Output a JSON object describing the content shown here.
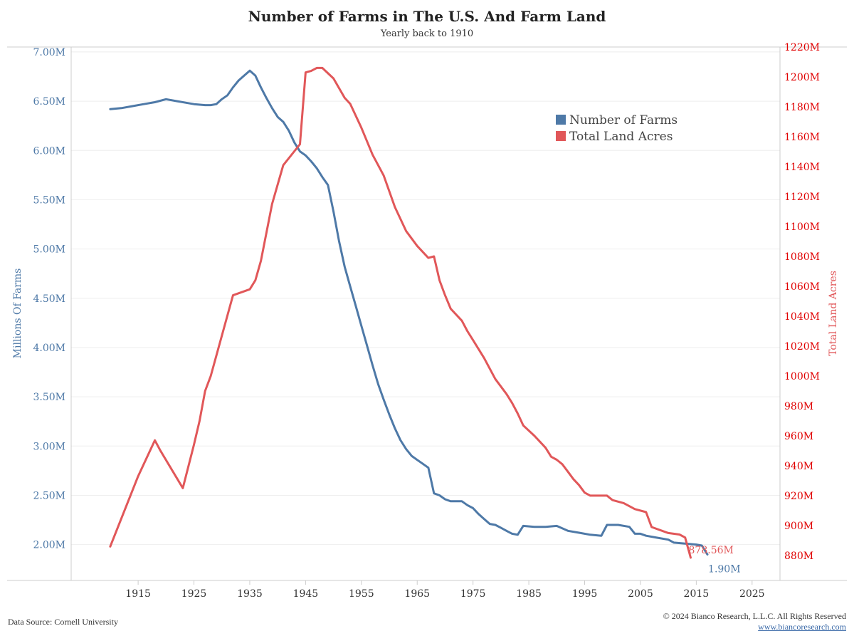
{
  "header": {
    "title": "Number of Farms in The U.S. And Farm Land",
    "subtitle": "Yearly back to 1910"
  },
  "footer": {
    "source": "Data Source: Cornell University",
    "copyright": "© 2024 Bianco Research, L.L.C. All Rights Reserved",
    "website": "www.biancoresearch.com"
  },
  "colors": {
    "farms": "#4e79a7",
    "acres": "#e15759",
    "right_axis_ticks": "#e00000",
    "grid": "#eeeeee",
    "axis": "#cccccc"
  },
  "chart_data": {
    "type": "line",
    "title": "Number of Farms in The U.S. And Farm Land",
    "subtitle": "Yearly back to 1910",
    "legend_position": "top-right",
    "grid": true,
    "x_axis": {
      "range": [
        1903,
        2030
      ],
      "ticks": [
        1915,
        1925,
        1935,
        1945,
        1955,
        1965,
        1975,
        1985,
        1995,
        2005,
        2015,
        2025
      ],
      "tick_labels": [
        "1915",
        "1925",
        "1935",
        "1945",
        "1955",
        "1965",
        "1975",
        "1985",
        "1995",
        "2005",
        "2015",
        "2025"
      ]
    },
    "y_left": {
      "label": "Millions Of Farms",
      "range": [
        1.636,
        7.05
      ],
      "ticks": [
        2.0,
        2.5,
        3.0,
        3.5,
        4.0,
        4.5,
        5.0,
        5.5,
        6.0,
        6.5,
        7.0
      ],
      "tick_labels": [
        "2.00M",
        "2.50M",
        "3.00M",
        "3.50M",
        "4.00M",
        "4.50M",
        "5.00M",
        "5.50M",
        "6.00M",
        "6.50M",
        "7.00M"
      ]
    },
    "y_right": {
      "label": "Total Land Acres",
      "range": [
        863.3,
        1220
      ],
      "ticks": [
        880,
        900,
        920,
        940,
        960,
        980,
        1000,
        1020,
        1040,
        1060,
        1080,
        1100,
        1120,
        1140,
        1160,
        1180,
        1200,
        1220
      ],
      "tick_labels": [
        "880M",
        "900M",
        "920M",
        "940M",
        "960M",
        "980M",
        "1000M",
        "1020M",
        "1040M",
        "1060M",
        "1080M",
        "1100M",
        "1120M",
        "1140M",
        "1160M",
        "1180M",
        "1200M",
        "1220M"
      ]
    },
    "series": [
      {
        "name": "Number of Farms",
        "axis": "left",
        "unit": "millions",
        "end_label": "1.90M",
        "points": [
          [
            1910,
            6.42
          ],
          [
            1912,
            6.43
          ],
          [
            1914,
            6.45
          ],
          [
            1916,
            6.47
          ],
          [
            1918,
            6.49
          ],
          [
            1920,
            6.52
          ],
          [
            1922,
            6.5
          ],
          [
            1925,
            6.47
          ],
          [
            1927,
            6.46
          ],
          [
            1928,
            6.46
          ],
          [
            1929,
            6.47
          ],
          [
            1930,
            6.52
          ],
          [
            1931,
            6.56
          ],
          [
            1932,
            6.64
          ],
          [
            1933,
            6.71
          ],
          [
            1934,
            6.76
          ],
          [
            1935,
            6.81
          ],
          [
            1936,
            6.76
          ],
          [
            1937,
            6.64
          ],
          [
            1938,
            6.53
          ],
          [
            1939,
            6.43
          ],
          [
            1940,
            6.34
          ],
          [
            1941,
            6.29
          ],
          [
            1942,
            6.2
          ],
          [
            1943,
            6.08
          ],
          [
            1944,
            5.99
          ],
          [
            1945,
            5.95
          ],
          [
            1946,
            5.89
          ],
          [
            1947,
            5.82
          ],
          [
            1948,
            5.73
          ],
          [
            1949,
            5.65
          ],
          [
            1950,
            5.38
          ],
          [
            1951,
            5.08
          ],
          [
            1952,
            4.82
          ],
          [
            1953,
            4.62
          ],
          [
            1954,
            4.42
          ],
          [
            1955,
            4.22
          ],
          [
            1956,
            4.02
          ],
          [
            1957,
            3.82
          ],
          [
            1958,
            3.63
          ],
          [
            1959,
            3.47
          ],
          [
            1960,
            3.32
          ],
          [
            1961,
            3.18
          ],
          [
            1962,
            3.06
          ],
          [
            1963,
            2.97
          ],
          [
            1964,
            2.9
          ],
          [
            1965,
            2.86
          ],
          [
            1966,
            2.82
          ],
          [
            1967,
            2.78
          ],
          [
            1968,
            2.52
          ],
          [
            1969,
            2.5
          ],
          [
            1970,
            2.46
          ],
          [
            1971,
            2.44
          ],
          [
            1972,
            2.44
          ],
          [
            1973,
            2.44
          ],
          [
            1974,
            2.4
          ],
          [
            1975,
            2.37
          ],
          [
            1976,
            2.31
          ],
          [
            1977,
            2.26
          ],
          [
            1978,
            2.21
          ],
          [
            1979,
            2.2
          ],
          [
            1980,
            2.17
          ],
          [
            1981,
            2.14
          ],
          [
            1982,
            2.11
          ],
          [
            1983,
            2.1
          ],
          [
            1984,
            2.19
          ],
          [
            1986,
            2.18
          ],
          [
            1988,
            2.18
          ],
          [
            1990,
            2.19
          ],
          [
            1992,
            2.14
          ],
          [
            1994,
            2.12
          ],
          [
            1996,
            2.1
          ],
          [
            1998,
            2.09
          ],
          [
            1999,
            2.2
          ],
          [
            2001,
            2.2
          ],
          [
            2003,
            2.18
          ],
          [
            2004,
            2.11
          ],
          [
            2005,
            2.11
          ],
          [
            2006,
            2.09
          ],
          [
            2008,
            2.07
          ],
          [
            2010,
            2.05
          ],
          [
            2011,
            2.02
          ],
          [
            2013,
            2.01
          ],
          [
            2015,
            2.0
          ],
          [
            2016,
            1.99
          ],
          [
            2017,
            1.9
          ]
        ]
      },
      {
        "name": "Total Land Acres",
        "axis": "right",
        "unit": "million acres",
        "end_label": "878.56M",
        "points": [
          [
            1910,
            886
          ],
          [
            1915,
            933
          ],
          [
            1918,
            957
          ],
          [
            1919,
            950
          ],
          [
            1923,
            925
          ],
          [
            1925,
            954
          ],
          [
            1926,
            970
          ],
          [
            1927,
            990
          ],
          [
            1928,
            1000
          ],
          [
            1932,
            1054
          ],
          [
            1935,
            1058
          ],
          [
            1936,
            1064
          ],
          [
            1937,
            1077
          ],
          [
            1939,
            1115
          ],
          [
            1941,
            1141
          ],
          [
            1944,
            1155
          ],
          [
            1945,
            1203
          ],
          [
            1946,
            1204
          ],
          [
            1947,
            1206
          ],
          [
            1948,
            1206
          ],
          [
            1950,
            1199
          ],
          [
            1952,
            1186
          ],
          [
            1953,
            1182
          ],
          [
            1955,
            1166
          ],
          [
            1957,
            1148
          ],
          [
            1959,
            1134
          ],
          [
            1961,
            1113
          ],
          [
            1963,
            1097
          ],
          [
            1965,
            1087
          ],
          [
            1967,
            1079
          ],
          [
            1968,
            1080
          ],
          [
            1969,
            1064
          ],
          [
            1970,
            1054
          ],
          [
            1971,
            1045
          ],
          [
            1973,
            1037
          ],
          [
            1974,
            1030
          ],
          [
            1975,
            1024
          ],
          [
            1977,
            1012
          ],
          [
            1979,
            998
          ],
          [
            1981,
            988
          ],
          [
            1982,
            982
          ],
          [
            1983,
            975
          ],
          [
            1984,
            967
          ],
          [
            1986,
            960
          ],
          [
            1987,
            956
          ],
          [
            1988,
            952
          ],
          [
            1989,
            946
          ],
          [
            1990,
            944
          ],
          [
            1991,
            941
          ],
          [
            1992,
            936
          ],
          [
            1993,
            931
          ],
          [
            1994,
            927
          ],
          [
            1995,
            922
          ],
          [
            1996,
            920
          ],
          [
            1999,
            920
          ],
          [
            2000,
            917
          ],
          [
            2002,
            915
          ],
          [
            2004,
            911
          ],
          [
            2006,
            909
          ],
          [
            2007,
            899
          ],
          [
            2010,
            895
          ],
          [
            2012,
            894
          ],
          [
            2013,
            892
          ],
          [
            2014,
            878.56
          ]
        ]
      }
    ]
  }
}
